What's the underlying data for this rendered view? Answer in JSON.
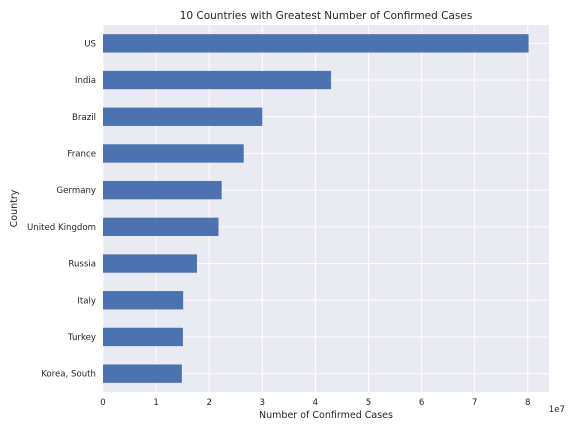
{
  "chart_data": {
    "type": "bar",
    "orientation": "horizontal",
    "title": "10 Countries with Greatest Number of Confirmed Cases",
    "xlabel": "Number of Confirmed Cases",
    "ylabel": "Country",
    "offset_text": "1e7",
    "categories": [
      "US",
      "India",
      "Brazil",
      "France",
      "Germany",
      "United Kingdom",
      "Russia",
      "Italy",
      "Turkey",
      "Korea, South"
    ],
    "values": [
      80150000,
      42950000,
      30000000,
      26500000,
      22350000,
      21750000,
      17700000,
      15100000,
      15050000,
      14850000
    ],
    "value_unit_scale": 10000000,
    "xlim": [
      0,
      84000000
    ],
    "x_ticks": [
      0,
      1,
      2,
      3,
      4,
      5,
      6,
      7,
      8
    ],
    "grid": true,
    "colors": {
      "bar": "#4C72B0",
      "plot_background": "#EAEAF2",
      "grid": "#FFFFFF"
    }
  }
}
